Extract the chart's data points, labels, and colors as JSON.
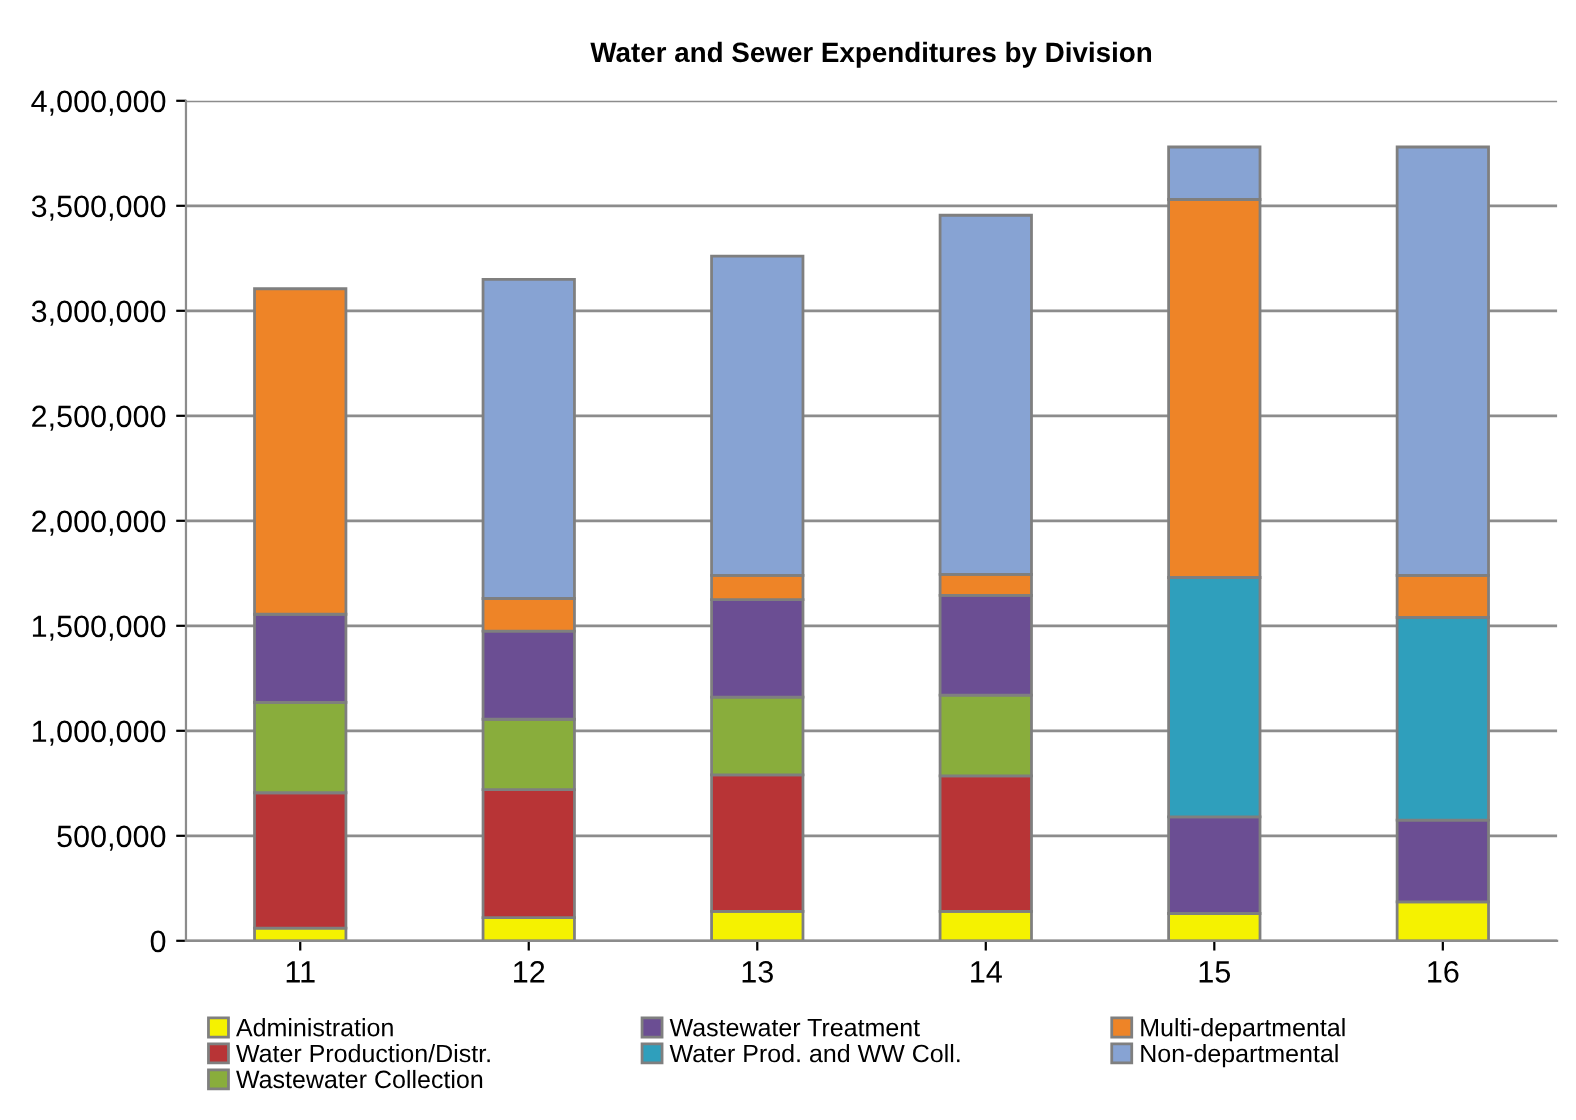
{
  "chart_data": {
    "type": "bar",
    "stacked": true,
    "title": "Water and Sewer Expenditures by Division",
    "categories": [
      "11",
      "12",
      "13",
      "14",
      "15",
      "16"
    ],
    "series": [
      {
        "name": "Administration",
        "color": "#f5f200",
        "values": [
          60000,
          110000,
          140000,
          140000,
          130000,
          185000
        ]
      },
      {
        "name": "Water Production/Distr.",
        "color": "#b83436",
        "values": [
          645000,
          610000,
          650000,
          645000,
          null,
          null
        ]
      },
      {
        "name": "Wastewater Collection",
        "color": "#89ad3c",
        "values": [
          430000,
          335000,
          370000,
          385000,
          null,
          null
        ]
      },
      {
        "name": "Wastewater Treatment",
        "color": "#6b4e93",
        "values": [
          420000,
          420000,
          465000,
          475000,
          460000,
          390000
        ]
      },
      {
        "name": "Water Prod. and WW Coll.",
        "color": "#2f9fbc",
        "values": [
          null,
          null,
          null,
          null,
          1140000,
          965000
        ]
      },
      {
        "name": "Multi-departmental",
        "color": "#ee8427",
        "values": [
          1550000,
          155000,
          115000,
          100000,
          1800000,
          200000
        ]
      },
      {
        "name": "Non-departmental",
        "color": "#87a3d3",
        "values": [
          null,
          1520000,
          1520000,
          1710000,
          250000,
          2040000
        ]
      }
    ],
    "ylim": [
      0,
      4000000
    ],
    "yticks": [
      {
        "value": 0,
        "label": "0"
      },
      {
        "value": 500000,
        "label": "500,000"
      },
      {
        "value": 1000000,
        "label": "1,000,000"
      },
      {
        "value": 1500000,
        "label": "1,500,000"
      },
      {
        "value": 2000000,
        "label": "2,000,000"
      },
      {
        "value": 2500000,
        "label": "2,500,000"
      },
      {
        "value": 3000000,
        "label": "3,000,000"
      },
      {
        "value": 3500000,
        "label": "3,500,000"
      },
      {
        "value": 4000000,
        "label": "4,000,000"
      }
    ],
    "grid": "y",
    "legend": "bottom"
  }
}
